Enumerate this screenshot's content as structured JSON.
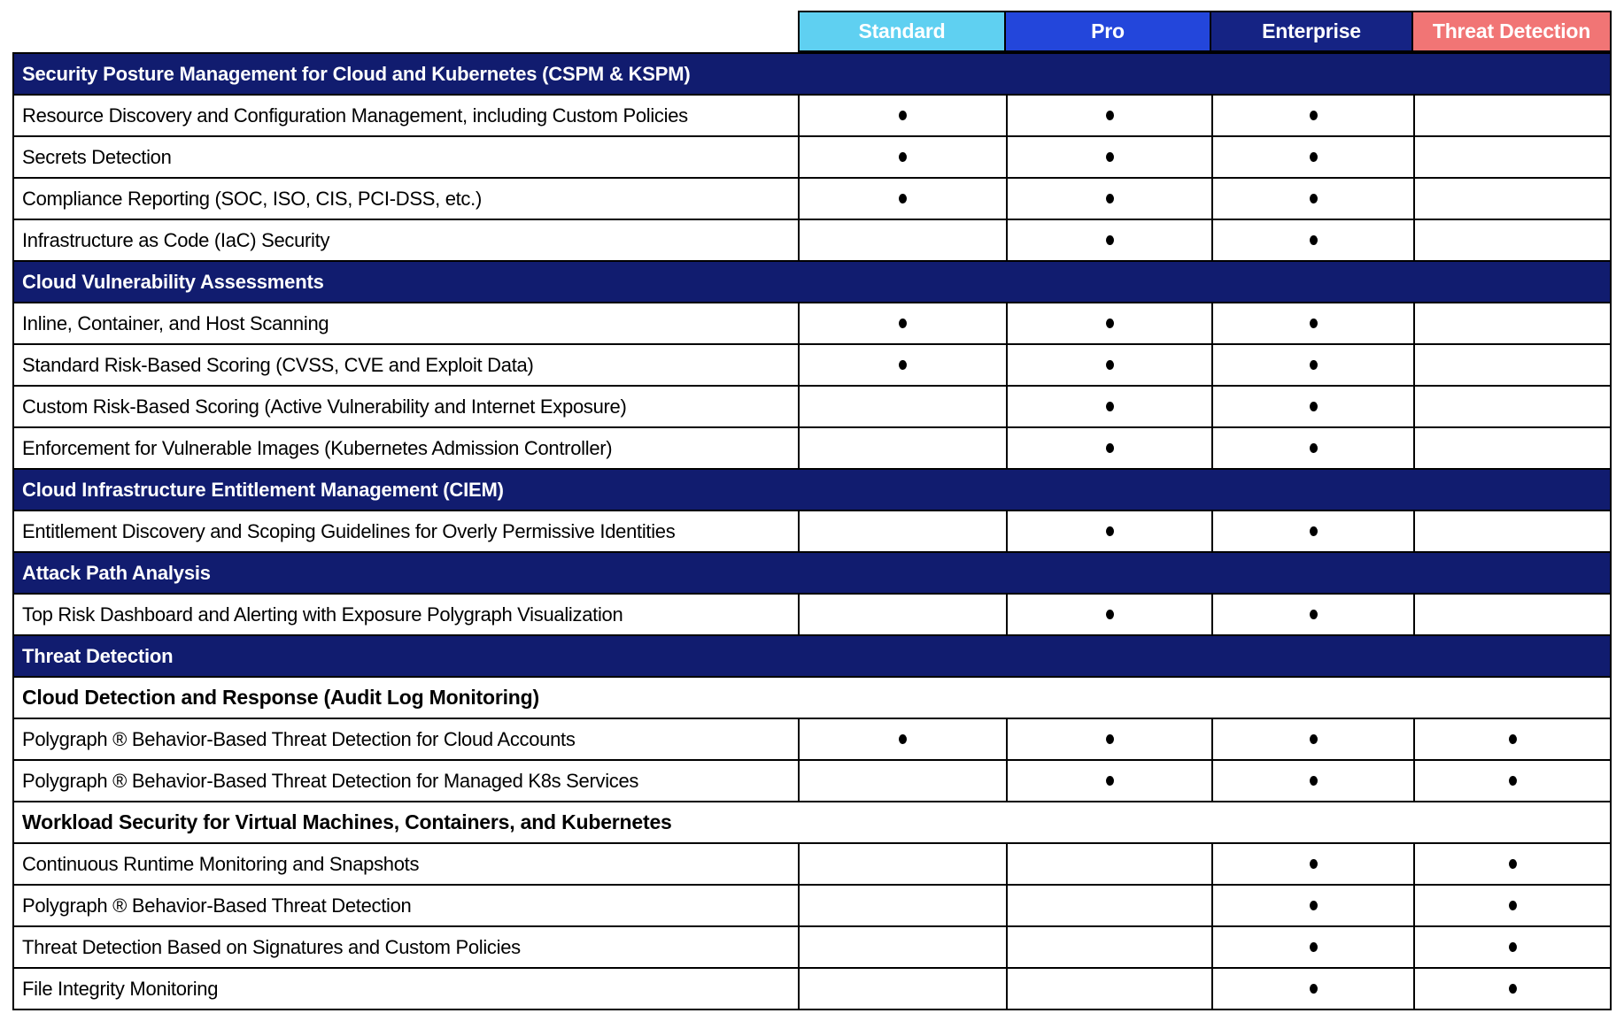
{
  "colors": {
    "standard_header": "#5FD0F1",
    "pro_header": "#2346DB",
    "enterprise_header": "#152384",
    "threat_detection_header": "#F17575",
    "section_header_bg": "#111C6F",
    "border": "#000000",
    "header_text": "#FFFFFF",
    "body_text": "#000000",
    "included_marker": "#000000"
  },
  "included_marker_glyph": "•",
  "plan_headers": [
    {
      "id": "standard",
      "label": "Standard"
    },
    {
      "id": "pro",
      "label": "Pro"
    },
    {
      "id": "enterprise",
      "label": "Enterprise"
    },
    {
      "id": "threat-detection",
      "label": "Threat Detection"
    }
  ],
  "rows": [
    {
      "type": "section",
      "label": "Security Posture Management for Cloud and Kubernetes (CSPM & KSPM)"
    },
    {
      "type": "feature",
      "label": "Resource Discovery and Configuration Management, including Custom Policies",
      "included": [
        true,
        true,
        true,
        false
      ]
    },
    {
      "type": "feature",
      "label": "Secrets Detection",
      "included": [
        true,
        true,
        true,
        false
      ]
    },
    {
      "type": "feature",
      "label": "Compliance Reporting (SOC, ISO, CIS, PCI-DSS, etc.)",
      "included": [
        true,
        true,
        true,
        false
      ]
    },
    {
      "type": "feature",
      "label": "Infrastructure as Code (IaC) Security",
      "included": [
        false,
        true,
        true,
        false
      ]
    },
    {
      "type": "section",
      "label": "Cloud Vulnerability Assessments"
    },
    {
      "type": "feature",
      "label": "Inline, Container, and Host Scanning",
      "included": [
        true,
        true,
        true,
        false
      ]
    },
    {
      "type": "feature",
      "label": "Standard Risk-Based Scoring (CVSS, CVE and Exploit Data)",
      "included": [
        true,
        true,
        true,
        false
      ]
    },
    {
      "type": "feature",
      "label": "Custom Risk-Based Scoring (Active Vulnerability and Internet Exposure)",
      "included": [
        false,
        true,
        true,
        false
      ]
    },
    {
      "type": "feature",
      "label": "Enforcement for Vulnerable Images (Kubernetes Admission Controller)",
      "included": [
        false,
        true,
        true,
        false
      ]
    },
    {
      "type": "section",
      "label": "Cloud Infrastructure Entitlement Management (CIEM)"
    },
    {
      "type": "feature",
      "label": "Entitlement Discovery and Scoping Guidelines for Overly Permissive Identities",
      "included": [
        false,
        true,
        true,
        false
      ]
    },
    {
      "type": "section",
      "label": "Attack Path Analysis"
    },
    {
      "type": "feature",
      "label": "Top Risk Dashboard and Alerting with Exposure Polygraph Visualization",
      "included": [
        false,
        true,
        true,
        false
      ]
    },
    {
      "type": "section",
      "label": "Threat Detection"
    },
    {
      "type": "subsection",
      "label": "Cloud Detection and Response (Audit Log Monitoring)"
    },
    {
      "type": "feature",
      "label": "Polygraph ® Behavior-Based Threat Detection for Cloud Accounts",
      "included": [
        true,
        true,
        true,
        true
      ]
    },
    {
      "type": "feature",
      "label": "Polygraph ® Behavior-Based Threat Detection for Managed K8s Services",
      "included": [
        false,
        true,
        true,
        true
      ]
    },
    {
      "type": "subsection",
      "label": "Workload Security for Virtual Machines, Containers, and Kubernetes"
    },
    {
      "type": "feature",
      "label": "Continuous Runtime Monitoring and Snapshots",
      "included": [
        false,
        false,
        true,
        true
      ]
    },
    {
      "type": "feature",
      "label": "Polygraph ® Behavior-Based Threat Detection",
      "included": [
        false,
        false,
        true,
        true
      ]
    },
    {
      "type": "feature",
      "label": "Threat Detection Based on Signatures and Custom Policies",
      "included": [
        false,
        false,
        true,
        true
      ]
    },
    {
      "type": "feature",
      "label": "File Integrity Monitoring",
      "included": [
        false,
        false,
        true,
        true
      ]
    }
  ]
}
